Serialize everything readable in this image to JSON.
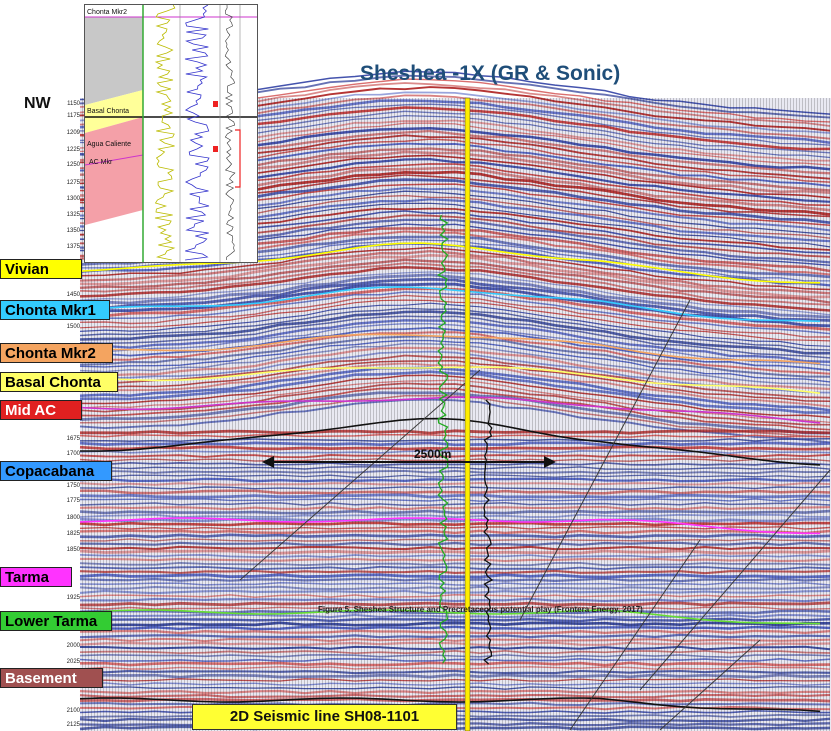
{
  "title": "Sheshea -1X (GR & Sonic)",
  "direction": "NW",
  "depth_ticks": [
    "1150",
    "1175",
    "1209",
    "1225",
    "1250",
    "1275",
    "1300",
    "1325",
    "1350",
    "1375",
    "1450",
    "1500",
    "1675",
    "1700",
    "1750",
    "1775",
    "1800",
    "1825",
    "1850",
    "1925",
    "2000",
    "2025",
    "2100",
    "2125"
  ],
  "horizons": [
    {
      "name": "Vivian",
      "bg": "#ffff00",
      "fg": "#000000"
    },
    {
      "name": "Chonta Mkr1",
      "bg": "#33ccff",
      "fg": "#000000"
    },
    {
      "name": "Chonta Mkr2",
      "bg": "#f4a460",
      "fg": "#000000"
    },
    {
      "name": "Basal Chonta",
      "bg": "#ffff66",
      "fg": "#000000"
    },
    {
      "name": "Mid AC",
      "bg": "#e02020",
      "fg": "#ffffff"
    },
    {
      "name": "Copacabana",
      "bg": "#3399ff",
      "fg": "#000000"
    },
    {
      "name": "Tarma",
      "bg": "#ff33ff",
      "fg": "#000000"
    },
    {
      "name": "Lower Tarma",
      "bg": "#33cc33",
      "fg": "#000000"
    },
    {
      "name": "Basement",
      "bg": "#a05050",
      "fg": "#ffffff"
    }
  ],
  "distance_label": "2500m",
  "caption": "Figure 5. Sheshea Structure and Precretaceous potential play (Frontera Energy, 2017)",
  "seismic_line": "2D Seismic line SH08-1101",
  "inset": {
    "labels": [
      "Chonta Mkr2",
      "Basal Chonta",
      "Agua Caliente",
      "AC Mkr"
    ]
  }
}
